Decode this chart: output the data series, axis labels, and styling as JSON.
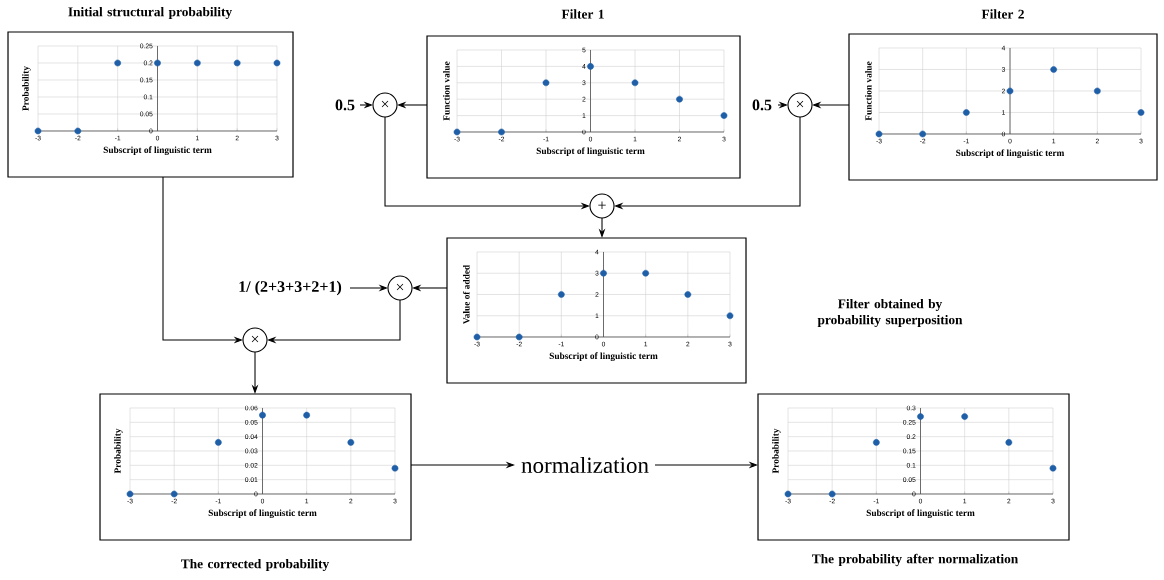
{
  "chart_data": [
    {
      "type": "scatter",
      "title": "Initial structural probability",
      "xlabel": "Subscript of linguistic term",
      "ylabel": "Probability",
      "x": [
        -3,
        -2,
        -1,
        0,
        1,
        2,
        3
      ],
      "values": [
        0,
        0,
        0.2,
        0.2,
        0.2,
        0.2,
        0.2
      ],
      "color": "#1f5fa8",
      "marker": "circle",
      "grid": true,
      "xlim": [
        -3,
        3
      ],
      "ylim": [
        0,
        0.25
      ],
      "xticks": [
        -3,
        -2,
        -1,
        0,
        1,
        2,
        3
      ],
      "yticks": [
        0,
        0.05,
        0.1,
        0.15,
        0.2,
        0.25
      ]
    },
    {
      "type": "scatter",
      "title": "Filter 1",
      "xlabel": "Subscript of linguistic term",
      "ylabel": "Function value",
      "x": [
        -3,
        -2,
        -1,
        0,
        1,
        2,
        3
      ],
      "values": [
        0,
        0,
        3,
        4,
        3,
        2,
        1
      ],
      "color": "#1f5fa8",
      "marker": "circle",
      "grid": true,
      "xlim": [
        -3,
        3
      ],
      "ylim": [
        0,
        5
      ],
      "xticks": [
        -3,
        -2,
        -1,
        0,
        1,
        2,
        3
      ],
      "yticks": [
        0,
        1,
        2,
        3,
        4,
        5
      ],
      "annotations": [
        "0.5",
        "×"
      ]
    },
    {
      "type": "scatter",
      "title": "Filter 2",
      "xlabel": "Subscript of linguistic term",
      "ylabel": "Function value",
      "x": [
        -3,
        -2,
        -1,
        0,
        1,
        2,
        3
      ],
      "values": [
        0,
        0,
        1,
        2,
        3,
        2,
        1
      ],
      "color": "#1f5fa8",
      "marker": "circle",
      "grid": true,
      "xlim": [
        -3,
        3
      ],
      "ylim": [
        0,
        4
      ],
      "xticks": [
        -3,
        -2,
        -1,
        0,
        1,
        2,
        3
      ],
      "yticks": [
        0,
        1,
        2,
        3,
        4
      ],
      "annotations": [
        "0.5",
        "×"
      ]
    },
    {
      "type": "scatter",
      "xlabel": "Subscript of linguistic term",
      "ylabel": "Value of added",
      "x": [
        -3,
        -2,
        -1,
        0,
        1,
        2,
        3
      ],
      "values": [
        0,
        0,
        2,
        3,
        3,
        2,
        1
      ],
      "color": "#1f5fa8",
      "marker": "circle",
      "grid": true,
      "xlim": [
        -3,
        3
      ],
      "ylim": [
        0,
        4
      ],
      "xticks": [
        -3,
        -2,
        -1,
        0,
        1,
        2,
        3
      ],
      "yticks": [
        0,
        1,
        2,
        3,
        4
      ],
      "annotations": [
        "+",
        "1/ (2+3+3+2+1)",
        "×",
        "Filter obtained by probability superposition"
      ]
    },
    {
      "type": "scatter",
      "title": "The corrected probability",
      "xlabel": "Subscript of linguistic term",
      "ylabel": "Probability",
      "x": [
        -3,
        -2,
        -1,
        0,
        1,
        2,
        3
      ],
      "values": [
        0,
        0,
        0.036,
        0.055,
        0.055,
        0.036,
        0.018
      ],
      "color": "#1f5fa8",
      "marker": "circle",
      "grid": true,
      "xlim": [
        -3,
        3
      ],
      "ylim": [
        0,
        0.06
      ],
      "xticks": [
        -3,
        -2,
        -1,
        0,
        1,
        2,
        3
      ],
      "yticks": [
        0,
        0.01,
        0.02,
        0.03,
        0.04,
        0.05,
        0.06
      ],
      "annotations": [
        "×"
      ]
    },
    {
      "type": "scatter",
      "title": "The probability after normalization",
      "xlabel": "Subscript of linguistic term",
      "ylabel": "Probability",
      "x": [
        -3,
        -2,
        -1,
        0,
        1,
        2,
        3
      ],
      "values": [
        0,
        0,
        0.18,
        0.27,
        0.27,
        0.18,
        0.09
      ],
      "color": "#1f5fa8",
      "marker": "circle",
      "grid": true,
      "xlim": [
        -3,
        3
      ],
      "ylim": [
        0,
        0.3
      ],
      "xticks": [
        -3,
        -2,
        -1,
        0,
        1,
        2,
        3
      ],
      "yticks": [
        0,
        0.05,
        0.1,
        0.15,
        0.2,
        0.25,
        0.3
      ],
      "annotations": [
        "normalization"
      ]
    }
  ]
}
